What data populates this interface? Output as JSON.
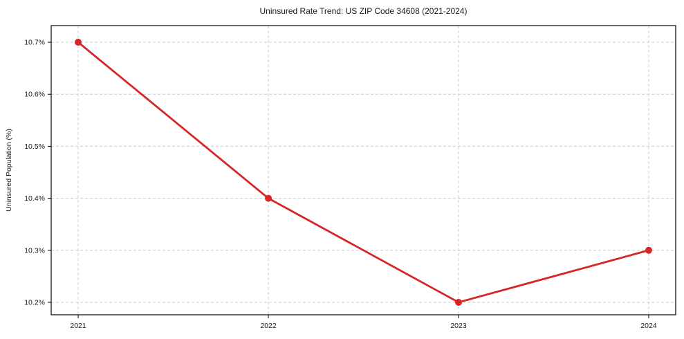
{
  "chart_data": {
    "type": "line",
    "title": "Uninsured Rate Trend: US ZIP Code 34608 (2021-2024)",
    "xlabel": "",
    "ylabel": "Uninsured Population (%)",
    "x": [
      2021,
      2022,
      2023,
      2024
    ],
    "y": [
      10.7,
      10.4,
      10.2,
      10.3
    ],
    "x_tick_labels": [
      "2021",
      "2022",
      "2023",
      "2024"
    ],
    "y_ticks": [
      10.2,
      10.3,
      10.4,
      10.5,
      10.6,
      10.7
    ],
    "y_tick_labels": [
      "10.2%",
      "10.3%",
      "10.4%",
      "10.5%",
      "10.6%",
      "10.7%"
    ],
    "xlim": [
      2020.858,
      2024.142
    ],
    "ylim": [
      10.176,
      10.732
    ],
    "grid": true,
    "grid_style": "dashed",
    "legend_position": "none",
    "marker": "circle",
    "colors": {
      "line": "#d62728",
      "marker": "#d62728",
      "grid": "#cccccc",
      "axis": "#000000",
      "text": "#1a1a1a",
      "background": "#ffffff"
    }
  }
}
